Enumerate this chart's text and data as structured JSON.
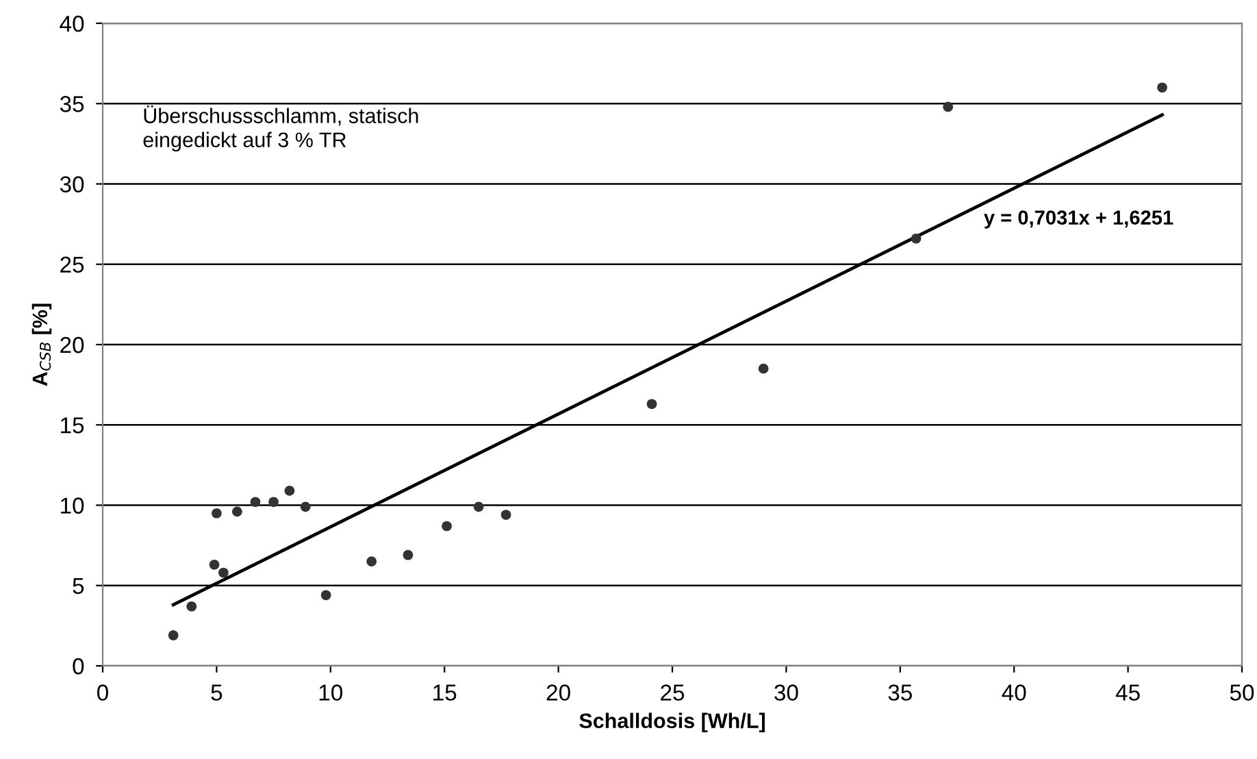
{
  "chart_data": {
    "type": "scatter",
    "xlabel": "Schalldosis [Wh/L]",
    "ylabel": "A$_{CSB}$ [%]",
    "annotations": [
      "Überschussschlamm, statisch\neingedickt auf 3 % TR",
      "y = 0,7031x + 1,6251"
    ],
    "series": [
      {
        "color": "#333333",
        "marker": "circle",
        "x": [
          3.1,
          3.9,
          5.0,
          4.9,
          5.3,
          5.9,
          6.7,
          7.5,
          8.2,
          8.9,
          9.8,
          11.8,
          13.4,
          15.1,
          16.5,
          17.7,
          24.1,
          29.0,
          35.7,
          37.1,
          46.5
        ],
        "values": [
          1.9,
          3.7,
          9.5,
          6.3,
          5.8,
          9.6,
          10.2,
          10.2,
          10.9,
          9.9,
          4.4,
          6.5,
          6.9,
          8.7,
          9.9,
          9.4,
          16.3,
          18.5,
          26.6,
          34.8,
          36.0
        ]
      },
      {
        "type": "line",
        "color": "#000000",
        "line_style": "solid",
        "x": [
          3.1,
          46.5
        ],
        "values": [
          3.8,
          34.3
        ]
      }
    ],
    "xlim": [
      0,
      50
    ],
    "xticks": [
      0,
      5,
      10,
      15,
      20,
      25,
      30,
      35,
      40,
      45,
      50
    ],
    "ylim": [
      0,
      40
    ],
    "yticks": [
      0,
      5,
      10,
      15,
      20,
      25,
      30,
      35,
      40
    ],
    "grid": "y"
  }
}
